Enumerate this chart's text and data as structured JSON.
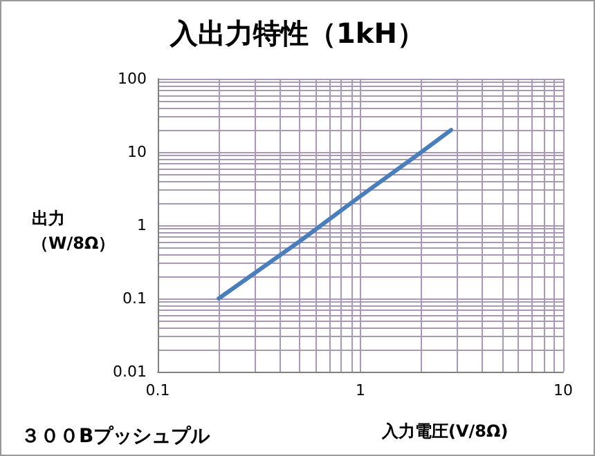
{
  "chart_data": {
    "type": "line",
    "title": "入出力特性（1kH）",
    "xlabel": "入力電圧(V/8Ω)",
    "ylabel": "出力（W/8Ω）",
    "annotations": [
      "３００Bプッシュプル"
    ],
    "x": [
      0.2,
      0.5,
      1,
      2,
      2.8
    ],
    "series": [
      {
        "color": "#4a7ebb",
        "values": [
          0.1,
          0.6,
          2.5,
          10,
          20
        ]
      }
    ],
    "log": "xy",
    "xlim": [
      0.1,
      10
    ],
    "xticks": [
      0.1,
      1,
      10
    ],
    "ylim": [
      0.01,
      100
    ],
    "yticks": [
      0.01,
      0.1,
      1,
      10,
      100
    ],
    "grid": true,
    "marker": "none",
    "line_style": "solid"
  }
}
